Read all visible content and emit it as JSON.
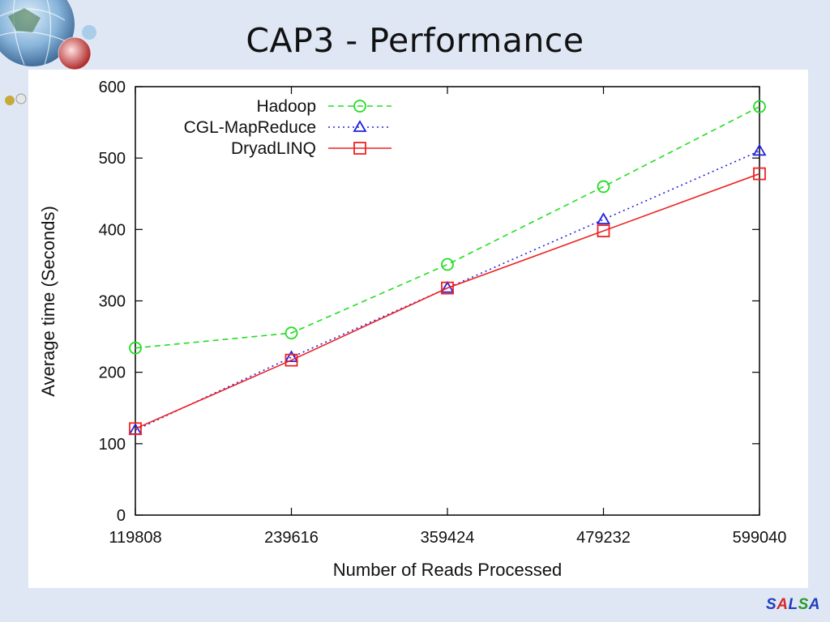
{
  "slide": {
    "title": "CAP3 - Performance",
    "logo_text": "SALSA",
    "logo_colors": [
      "#1f3fbf",
      "#d42a2a",
      "#1f3fbf",
      "#2a9a2a",
      "#1f3fbf"
    ],
    "decoration": "globe-network-icon"
  },
  "chart_data": {
    "type": "line",
    "title": "",
    "xlabel": "Number of Reads Processed",
    "ylabel": "Average time (Seconds)",
    "categories": [
      "119808",
      "239616",
      "359424",
      "479232",
      "599040"
    ],
    "ylim": [
      0,
      600
    ],
    "yticks": [
      0,
      100,
      200,
      300,
      400,
      500,
      600
    ],
    "grid": false,
    "legend_position": "top-left",
    "series": [
      {
        "name": "Hadoop",
        "values": [
          234,
          255,
          351,
          460,
          572
        ],
        "color": "#22dd22",
        "dash": "dashed",
        "marker": "circle"
      },
      {
        "name": "CGL-MapReduce",
        "values": [
          119,
          221,
          318,
          414,
          510
        ],
        "color": "#2222dd",
        "dash": "dotted",
        "marker": "triangle"
      },
      {
        "name": "DryadLINQ",
        "values": [
          121,
          217,
          318,
          398,
          478
        ],
        "color": "#ee2222",
        "dash": "solid",
        "marker": "square"
      }
    ]
  }
}
